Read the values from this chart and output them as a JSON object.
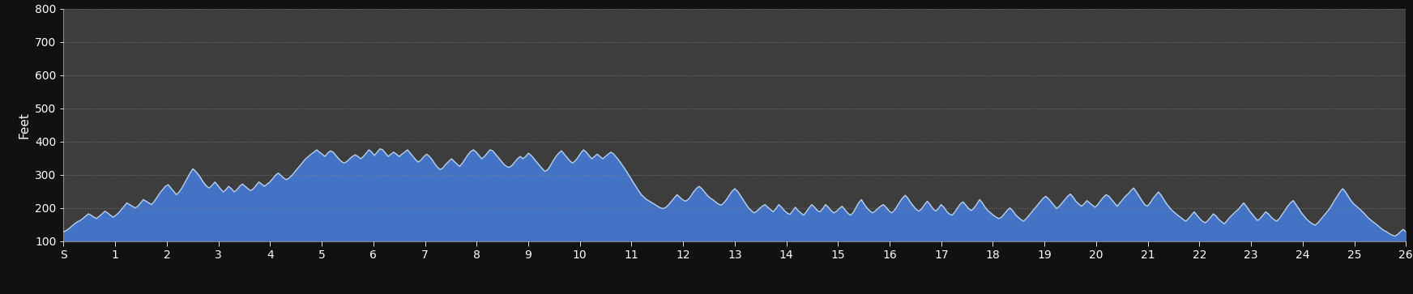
{
  "ylabel": "Feet",
  "xlabel_ticks": [
    "S",
    "1",
    "2",
    "3",
    "4",
    "5",
    "6",
    "7",
    "8",
    "9",
    "10",
    "11",
    "12",
    "13",
    "14",
    "15",
    "16",
    "17",
    "18",
    "19",
    "20",
    "21",
    "22",
    "23",
    "24",
    "25",
    "26"
  ],
  "ylim": [
    100,
    800
  ],
  "yticks": [
    100,
    200,
    300,
    400,
    500,
    600,
    700,
    800
  ],
  "ytick_labels": [
    "100",
    "200",
    "300",
    "400",
    "500",
    "600",
    "700",
    "800"
  ],
  "background_color": "#3d3d3d",
  "figure_background": "#111111",
  "fill_color": "#4472c4",
  "line_color": "#b8d0e8",
  "grid_color": "#888888",
  "text_color": "#ffffff",
  "elevation_data": [
    128,
    132,
    138,
    145,
    152,
    158,
    162,
    168,
    175,
    182,
    178,
    172,
    168,
    175,
    182,
    190,
    185,
    178,
    172,
    178,
    185,
    195,
    205,
    215,
    210,
    205,
    200,
    205,
    215,
    225,
    220,
    215,
    210,
    220,
    232,
    245,
    255,
    265,
    270,
    260,
    250,
    240,
    248,
    260,
    275,
    290,
    305,
    318,
    310,
    300,
    288,
    275,
    265,
    260,
    268,
    278,
    268,
    258,
    248,
    255,
    265,
    258,
    248,
    255,
    265,
    272,
    265,
    258,
    252,
    258,
    268,
    278,
    272,
    265,
    272,
    278,
    288,
    298,
    305,
    298,
    290,
    285,
    290,
    298,
    308,
    318,
    328,
    338,
    348,
    355,
    362,
    368,
    375,
    368,
    362,
    355,
    365,
    372,
    368,
    358,
    348,
    340,
    335,
    340,
    348,
    355,
    360,
    355,
    348,
    355,
    365,
    375,
    368,
    358,
    368,
    378,
    375,
    365,
    355,
    362,
    368,
    362,
    355,
    362,
    368,
    375,
    365,
    355,
    345,
    338,
    345,
    355,
    362,
    355,
    345,
    332,
    322,
    315,
    322,
    332,
    340,
    348,
    340,
    332,
    325,
    335,
    348,
    360,
    370,
    375,
    368,
    358,
    348,
    355,
    365,
    375,
    372,
    362,
    352,
    342,
    332,
    325,
    322,
    328,
    338,
    348,
    355,
    348,
    355,
    365,
    358,
    348,
    338,
    328,
    318,
    310,
    315,
    328,
    342,
    355,
    365,
    372,
    362,
    352,
    342,
    335,
    342,
    352,
    365,
    375,
    368,
    358,
    348,
    355,
    362,
    355,
    348,
    355,
    362,
    368,
    362,
    352,
    342,
    330,
    318,
    305,
    292,
    278,
    265,
    252,
    240,
    232,
    225,
    220,
    215,
    210,
    205,
    200,
    198,
    202,
    210,
    220,
    230,
    240,
    232,
    225,
    220,
    225,
    235,
    248,
    258,
    265,
    258,
    248,
    238,
    230,
    225,
    218,
    212,
    208,
    215,
    225,
    238,
    250,
    258,
    250,
    238,
    225,
    212,
    200,
    192,
    185,
    190,
    198,
    205,
    210,
    202,
    195,
    188,
    198,
    210,
    202,
    192,
    185,
    180,
    190,
    202,
    192,
    185,
    178,
    188,
    200,
    210,
    202,
    192,
    188,
    198,
    210,
    202,
    192,
    185,
    190,
    198,
    205,
    195,
    185,
    178,
    185,
    200,
    215,
    225,
    212,
    200,
    192,
    185,
    190,
    198,
    205,
    210,
    202,
    192,
    185,
    192,
    205,
    218,
    230,
    238,
    228,
    215,
    205,
    195,
    190,
    198,
    210,
    220,
    210,
    198,
    190,
    198,
    210,
    202,
    190,
    182,
    178,
    188,
    200,
    212,
    218,
    208,
    198,
    192,
    200,
    212,
    225,
    215,
    202,
    192,
    185,
    178,
    172,
    168,
    172,
    182,
    192,
    200,
    192,
    180,
    172,
    165,
    160,
    168,
    178,
    188,
    198,
    208,
    218,
    228,
    235,
    228,
    218,
    208,
    198,
    205,
    215,
    225,
    235,
    242,
    232,
    220,
    212,
    205,
    212,
    222,
    215,
    208,
    202,
    210,
    222,
    232,
    240,
    235,
    225,
    215,
    205,
    215,
    225,
    235,
    242,
    252,
    260,
    248,
    235,
    222,
    210,
    205,
    215,
    228,
    238,
    248,
    238,
    225,
    212,
    202,
    192,
    185,
    178,
    172,
    165,
    160,
    168,
    178,
    188,
    178,
    168,
    160,
    155,
    162,
    172,
    182,
    175,
    165,
    158,
    152,
    162,
    172,
    180,
    188,
    195,
    205,
    215,
    205,
    192,
    182,
    172,
    162,
    168,
    178,
    188,
    182,
    172,
    165,
    160,
    168,
    180,
    192,
    205,
    215,
    222,
    210,
    198,
    185,
    175,
    165,
    158,
    152,
    148,
    155,
    165,
    175,
    185,
    195,
    208,
    222,
    235,
    248,
    258,
    248,
    235,
    222,
    212,
    205,
    198,
    190,
    182,
    172,
    165,
    158,
    152,
    145,
    138,
    132,
    128,
    122,
    118,
    115,
    120,
    128,
    135,
    128
  ],
  "x_tick_positions": [
    0,
    1,
    2,
    3,
    4,
    5,
    6,
    7,
    8,
    9,
    10,
    11,
    12,
    13,
    14,
    15,
    16,
    17,
    18,
    19,
    20,
    21,
    22,
    23,
    24,
    25,
    26
  ],
  "figsize": [
    17.44,
    3.63
  ],
  "dpi": 100
}
